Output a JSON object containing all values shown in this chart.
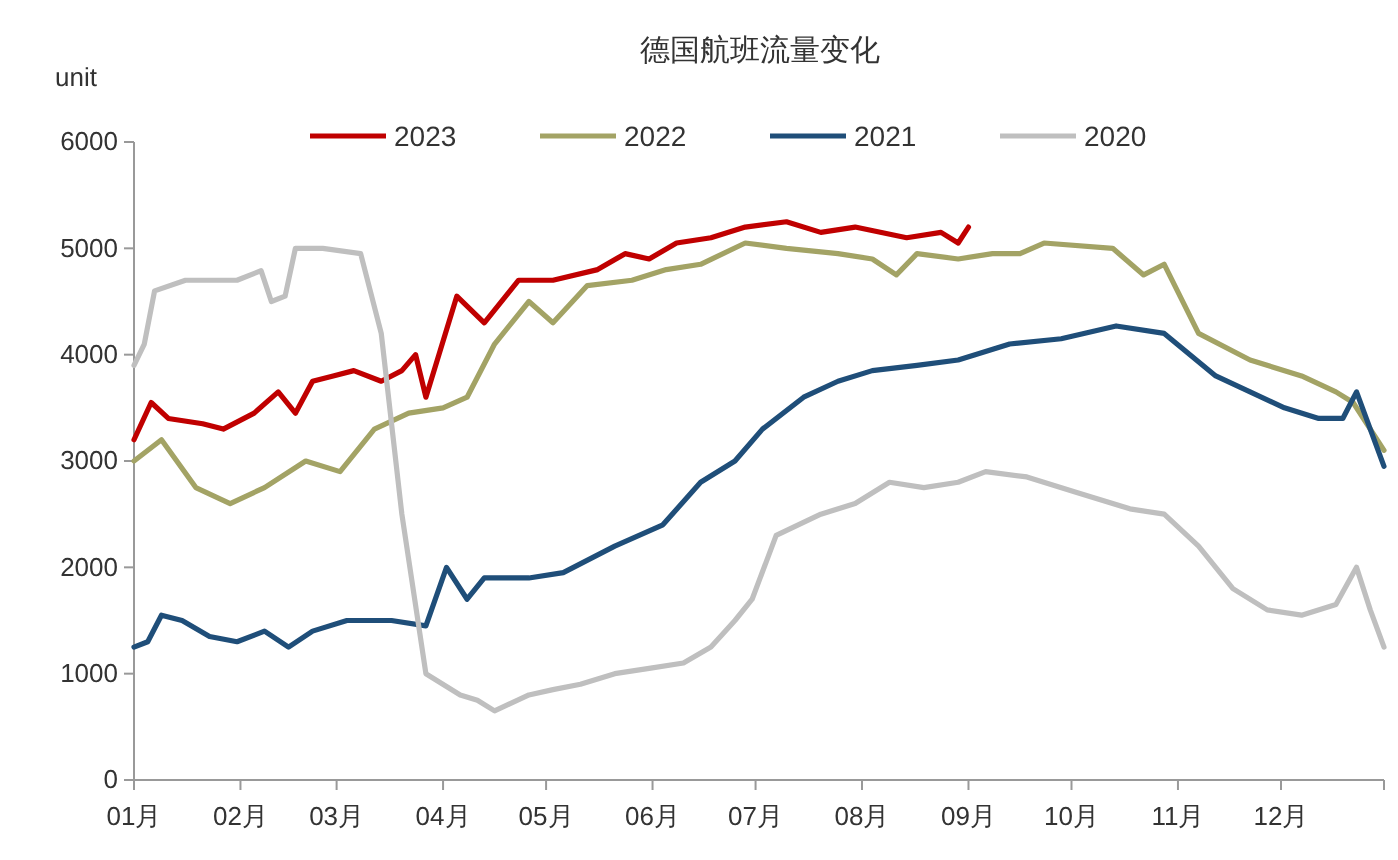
{
  "chart_data": {
    "type": "line",
    "title": "德国航班流量变化",
    "ylabel": "unit",
    "legend": "top",
    "grid": false,
    "marker": "none",
    "line_style": "solid",
    "xlim": [
      "--01-01",
      "--12-31"
    ],
    "ylim": [
      0,
      6000
    ],
    "yticks": [
      0,
      1000,
      2000,
      3000,
      4000,
      5000,
      6000
    ],
    "xticks": [
      {
        "value": "--01-01",
        "label": "01月"
      },
      {
        "value": "--02-01",
        "label": "02月"
      },
      {
        "value": "--03-01",
        "label": "03月"
      },
      {
        "value": "--04-01",
        "label": "04月"
      },
      {
        "value": "--05-01",
        "label": "05月"
      },
      {
        "value": "--06-01",
        "label": "06月"
      },
      {
        "value": "--07-01",
        "label": "07月"
      },
      {
        "value": "--08-01",
        "label": "08月"
      },
      {
        "value": "--09-01",
        "label": "09月"
      },
      {
        "value": "--10-01",
        "label": "10月"
      },
      {
        "value": "--11-01",
        "label": "11月"
      },
      {
        "value": "--12-01",
        "label": "12月"
      },
      {
        "value": "--12-31",
        "label": null
      }
    ],
    "series": [
      {
        "name": "2023",
        "color": "#c00000",
        "x": [
          "--01-01",
          "--01-06",
          "--01-11",
          "--01-21",
          "--01-27",
          "--02-05",
          "--02-12",
          "--02-17",
          "--02-22",
          "--02-28",
          "--03-06",
          "--03-14",
          "--03-20",
          "--03-24",
          "--03-27",
          "--04-05",
          "--04-13",
          "--04-23",
          "--05-03",
          "--05-16",
          "--05-24",
          "--05-31",
          "--06-08",
          "--06-18",
          "--06-28",
          "--07-10",
          "--07-20",
          "--07-30",
          "--08-14",
          "--08-24",
          "--08-29",
          "--09-01"
        ],
        "values": [
          3200,
          3550,
          3400,
          3350,
          3300,
          3450,
          3650,
          3450,
          3750,
          3800,
          3850,
          3750,
          3850,
          4000,
          3600,
          4550,
          4300,
          4700,
          4700,
          4800,
          4950,
          4900,
          5050,
          5100,
          5200,
          5250,
          5150,
          5200,
          5100,
          5150,
          5050,
          5200
        ]
      },
      {
        "name": "2022",
        "color": "#a3a365",
        "x": [
          "--01-01",
          "--01-09",
          "--01-19",
          "--01-29",
          "--02-08",
          "--02-20",
          "--03-02",
          "--03-12",
          "--03-22",
          "--04-01",
          "--04-08",
          "--04-16",
          "--04-26",
          "--05-03",
          "--05-13",
          "--05-26",
          "--06-05",
          "--06-15",
          "--06-28",
          "--07-10",
          "--07-25",
          "--08-04",
          "--08-11",
          "--08-17",
          "--08-29",
          "--09-08",
          "--09-16",
          "--09-23",
          "--10-13",
          "--10-22",
          "--10-28",
          "--11-07",
          "--11-22",
          "--12-07",
          "--12-17",
          "--12-22",
          "--12-31"
        ],
        "values": [
          3000,
          3200,
          2750,
          2600,
          2750,
          3000,
          2900,
          3300,
          3450,
          3500,
          3600,
          4100,
          4500,
          4300,
          4650,
          4700,
          4800,
          4850,
          5050,
          5000,
          4950,
          4900,
          4750,
          4950,
          4900,
          4950,
          4950,
          5050,
          5000,
          4750,
          4850,
          4200,
          3950,
          3800,
          3650,
          3550,
          3100
        ]
      },
      {
        "name": "2021",
        "color": "#1f4e79",
        "x": [
          "--01-01",
          "--01-05",
          "--01-09",
          "--01-15",
          "--01-23",
          "--01-31",
          "--02-08",
          "--02-15",
          "--02-22",
          "--03-04",
          "--03-17",
          "--03-27",
          "--04-02",
          "--04-08",
          "--04-13",
          "--04-26",
          "--05-06",
          "--05-21",
          "--06-04",
          "--06-15",
          "--06-25",
          "--07-03",
          "--07-15",
          "--07-25",
          "--08-04",
          "--08-17",
          "--08-29",
          "--09-13",
          "--09-28",
          "--10-14",
          "--10-28",
          "--11-12",
          "--11-22",
          "--12-02",
          "--12-12",
          "--12-19",
          "--12-23",
          "--12-31"
        ],
        "values": [
          1250,
          1300,
          1550,
          1500,
          1350,
          1300,
          1400,
          1250,
          1400,
          1500,
          1500,
          1450,
          2000,
          1700,
          1900,
          1900,
          1950,
          2200,
          2400,
          2800,
          3000,
          3300,
          3600,
          3750,
          3850,
          3900,
          3950,
          4100,
          4150,
          4270,
          4200,
          3800,
          3650,
          3500,
          3400,
          3400,
          3650,
          2950
        ]
      },
      {
        "name": "2020",
        "color": "#bfbfbf",
        "x": [
          "--01-01",
          "--01-04",
          "--01-07",
          "--01-16",
          "--01-31",
          "--02-07",
          "--02-10",
          "--02-14",
          "--02-17",
          "--02-25",
          "--03-08",
          "--03-14",
          "--03-20",
          "--03-27",
          "--04-06",
          "--04-11",
          "--04-16",
          "--04-26",
          "--05-03",
          "--05-11",
          "--05-21",
          "--05-31",
          "--06-10",
          "--06-18",
          "--06-25",
          "--06-30",
          "--07-07",
          "--07-20",
          "--07-30",
          "--08-09",
          "--08-19",
          "--08-29",
          "--09-06",
          "--09-18",
          "--10-03",
          "--10-18",
          "--10-28",
          "--11-07",
          "--11-17",
          "--11-27",
          "--12-07",
          "--12-17",
          "--12-23",
          "--12-27",
          "--12-31"
        ],
        "values": [
          3900,
          4100,
          4600,
          4700,
          4700,
          4790,
          4500,
          4550,
          5000,
          5000,
          4950,
          4200,
          2500,
          1000,
          800,
          750,
          650,
          800,
          850,
          900,
          1000,
          1050,
          1100,
          1250,
          1500,
          1700,
          2300,
          2500,
          2600,
          2800,
          2750,
          2800,
          2900,
          2850,
          2700,
          2550,
          2500,
          2200,
          1800,
          1600,
          1550,
          1650,
          2000,
          1600,
          1250
        ]
      }
    ]
  }
}
